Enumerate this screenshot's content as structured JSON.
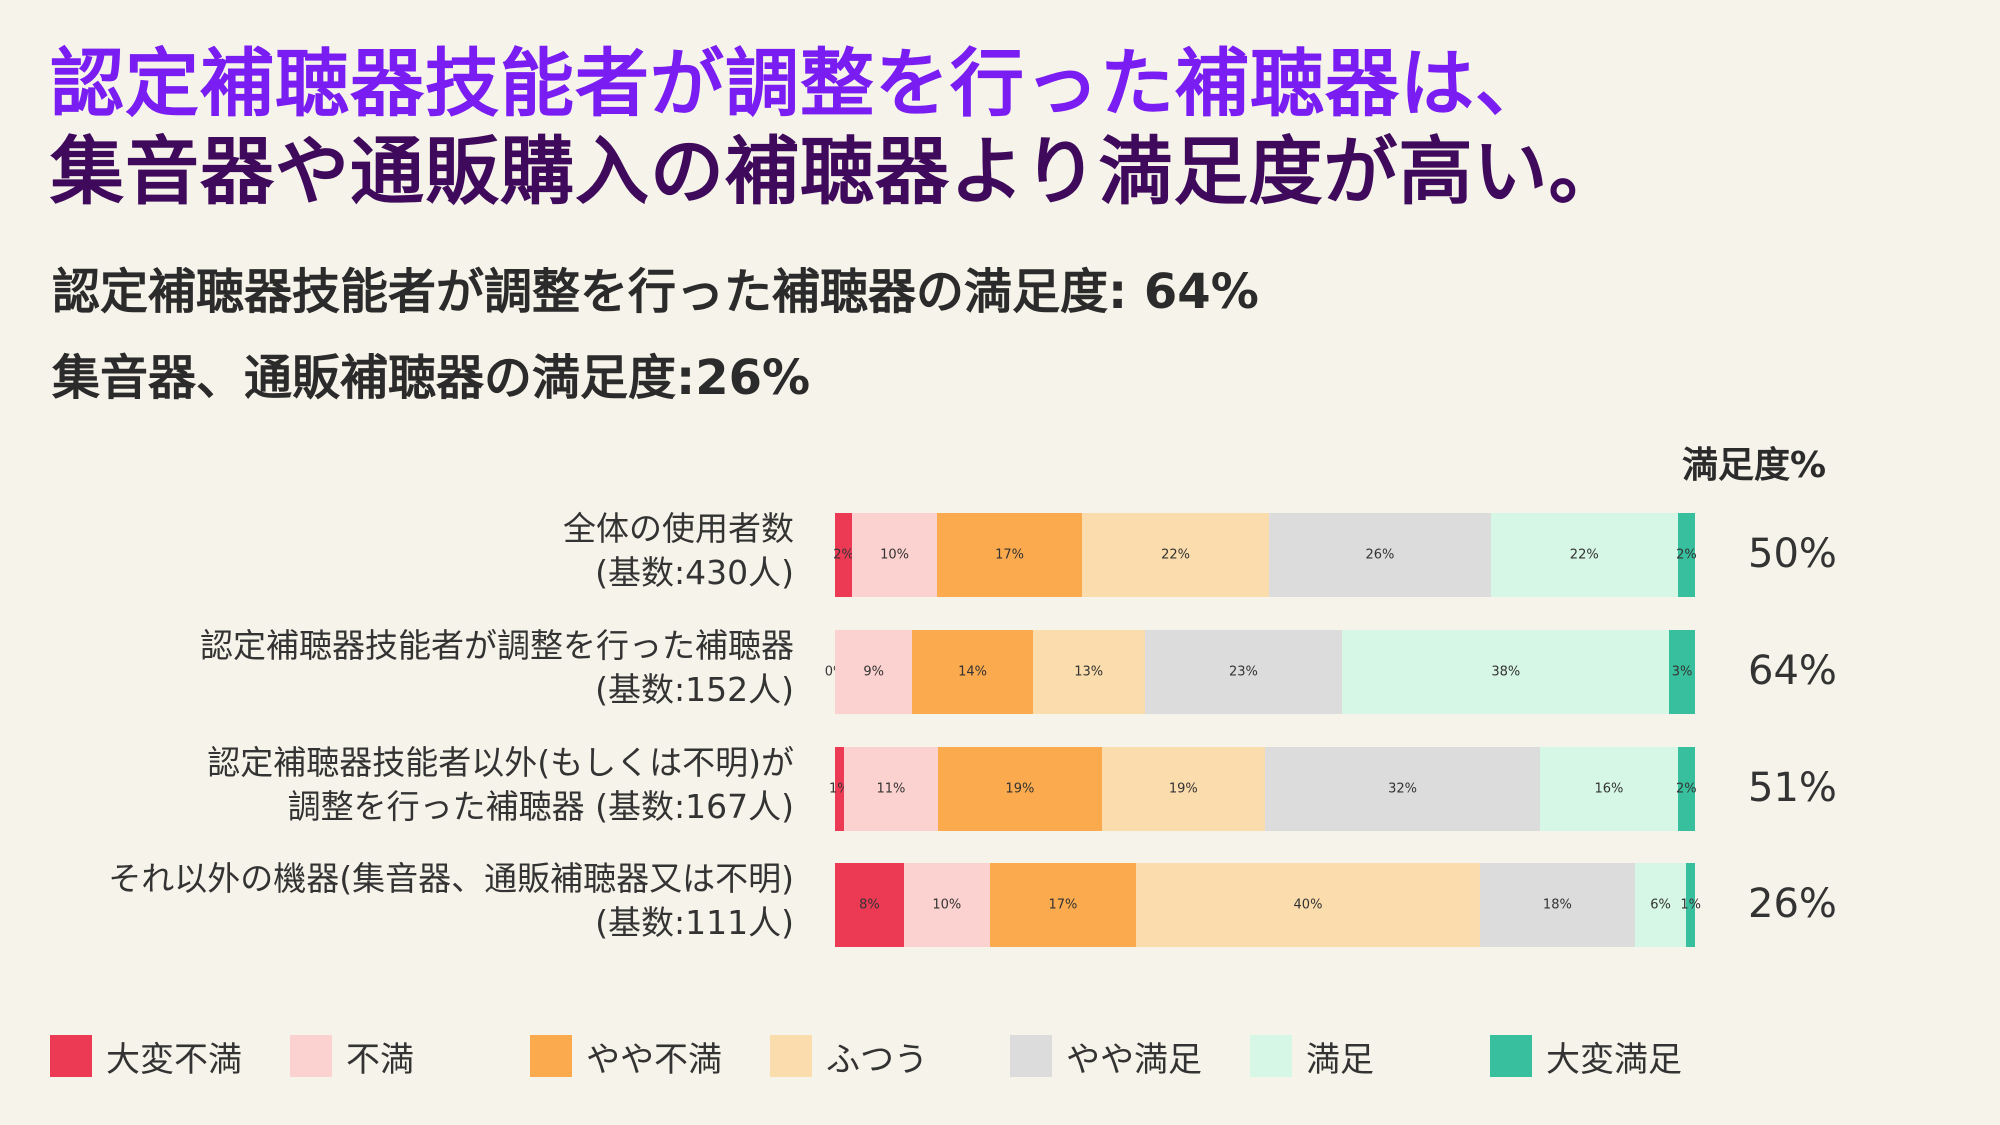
{
  "headline": {
    "line1": "認定補聴器技能者が調整を行った補聴器は、",
    "line2": "集音器や通販購入の補聴器より満足度が高い。"
  },
  "subheads": {
    "line1": "認定補聴器技能者が調整を行った補聴器の満足度: 64%",
    "line2": "集音器、通販補聴器の満足度:26%"
  },
  "chart_data": {
    "type": "bar",
    "orientation": "horizontal",
    "stacked": true,
    "satisfaction_header": "満足度%",
    "legend_placement": "bottom",
    "colors": [
      "#ec3a55",
      "#fcd2d0",
      "#fcaa4e",
      "#fbdcac",
      "#dcdcdc",
      "#d6f6e6",
      "#38bf9e"
    ],
    "series_names": [
      "大変不満",
      "不満",
      "やや不満",
      "ふつう",
      "やや満足",
      "満足",
      "大変満足"
    ],
    "rows": [
      {
        "label_lines": [
          "全体の使用者数",
          "(基数:430人)"
        ],
        "values": [
          2,
          10,
          17,
          22,
          26,
          22,
          2
        ],
        "labels": [
          "2%",
          "10%",
          "17%",
          "22%",
          "26%",
          "22%",
          "2%"
        ],
        "satisfaction": "50%"
      },
      {
        "label_lines": [
          "認定補聴器技能者が調整を行った補聴器",
          "(基数:152人)"
        ],
        "values": [
          0,
          9,
          14,
          13,
          23,
          38,
          3
        ],
        "labels": [
          "0%",
          "9%",
          "14%",
          "13%",
          "23%",
          "38%",
          "3%"
        ],
        "satisfaction": "64%"
      },
      {
        "label_lines": [
          "認定補聴器技能者以外(もしくは不明)が",
          "調整を行った補聴器 (基数:167人)"
        ],
        "values": [
          1,
          11,
          19,
          19,
          32,
          16,
          2
        ],
        "labels": [
          "1%",
          "11%",
          "19%",
          "19%",
          "32%",
          "16%",
          "2%"
        ],
        "satisfaction": "51%"
      },
      {
        "label_lines": [
          "それ以外の機器(集音器、通販補聴器又は不明)",
          "(基数:111人)"
        ],
        "values": [
          8,
          10,
          17,
          40,
          18,
          6,
          1
        ],
        "labels": [
          "8%",
          "10%",
          "17%",
          "40%",
          "18%",
          "6%",
          "1%"
        ],
        "satisfaction": "26%"
      }
    ]
  }
}
